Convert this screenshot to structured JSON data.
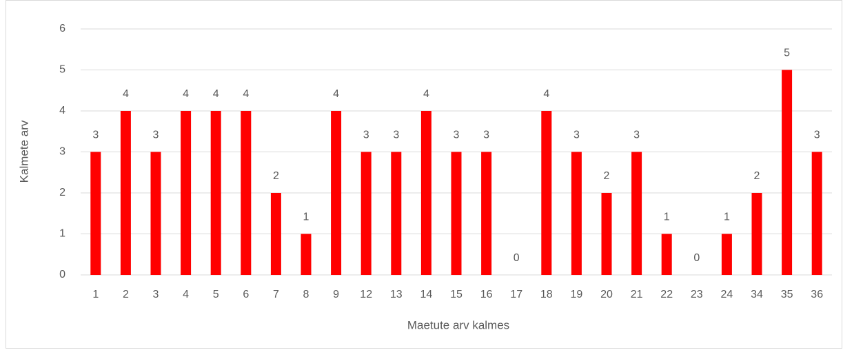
{
  "chart_data": {
    "type": "bar",
    "x_label": "Maetute arv kalmes",
    "y_label": "Kalmete arv",
    "categories": [
      "1",
      "2",
      "3",
      "4",
      "5",
      "6",
      "7",
      "8",
      "9",
      "12",
      "13",
      "14",
      "15",
      "16",
      "17",
      "18",
      "19",
      "20",
      "21",
      "22",
      "23",
      "24",
      "34",
      "35",
      "36"
    ],
    "values": [
      3,
      4,
      3,
      4,
      4,
      4,
      2,
      1,
      4,
      3,
      3,
      4,
      3,
      3,
      0,
      4,
      3,
      2,
      3,
      1,
      0,
      1,
      2,
      5,
      3
    ],
    "color": "#ff0000",
    "ylim": [
      0,
      6
    ],
    "yticks": [
      0,
      1,
      2,
      3,
      4,
      5,
      6
    ],
    "grid": true,
    "data_labels": true
  }
}
